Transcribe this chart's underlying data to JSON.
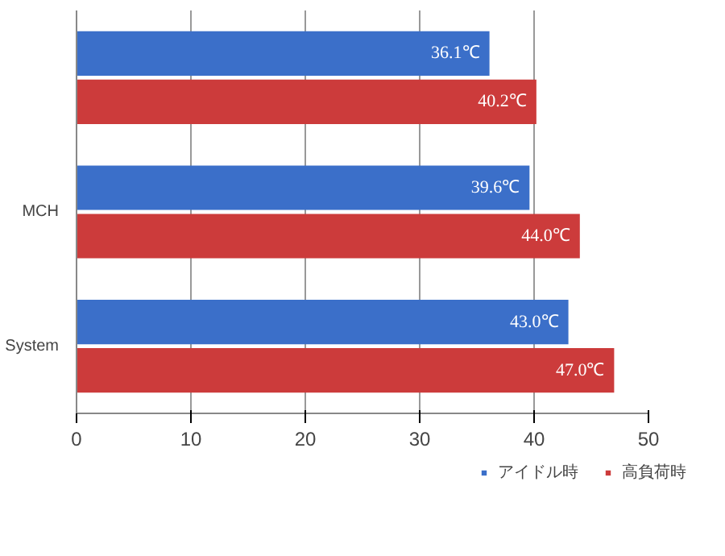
{
  "chart_data": {
    "type": "bar",
    "orientation": "horizontal",
    "categories": [
      null,
      "MCH",
      "System"
    ],
    "series": [
      {
        "name": "アイドル時",
        "color": "#3b6fc9",
        "values": [
          36.1,
          39.6,
          43.0
        ],
        "value_labels": [
          "36.1℃",
          "39.6℃",
          "43.0℃"
        ]
      },
      {
        "name": "高負荷時",
        "color": "#cc3b3b",
        "values": [
          40.2,
          44.0,
          47.0
        ],
        "value_labels": [
          "40.2℃",
          "44.0℃",
          "47.0℃"
        ]
      }
    ],
    "xlim": [
      0,
      50
    ],
    "xticks": [
      0,
      10,
      20,
      30,
      40,
      50
    ],
    "grid": "x",
    "legend": "bottom right"
  }
}
